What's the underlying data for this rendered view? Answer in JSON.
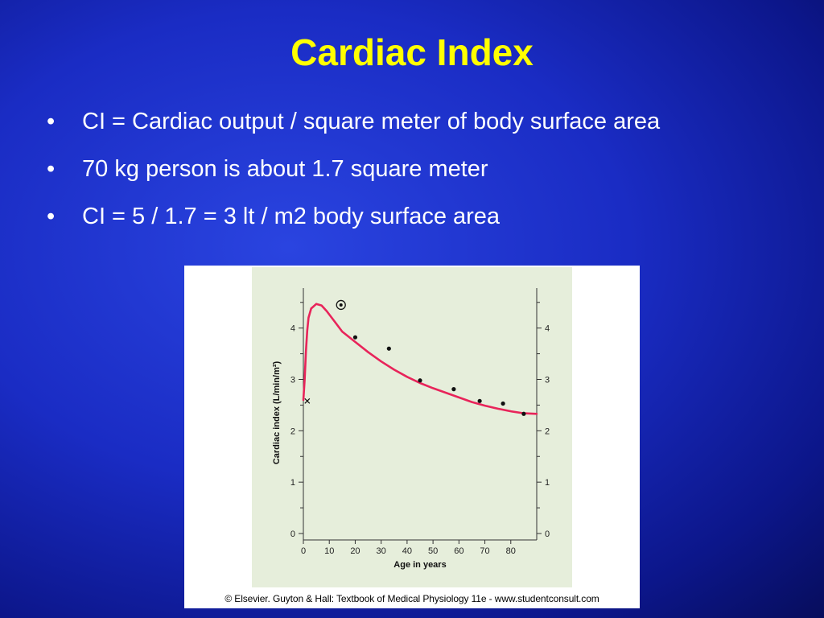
{
  "slide": {
    "title": "Cardiac Index",
    "bullet_glyph": "•",
    "bullets": [
      "CI = Cardiac output / square meter of body surface area",
      "70 kg person is about 1.7 square meter",
      "CI = 5 / 1.7 = 3 lt / m2 body surface area"
    ],
    "caption": "© Elsevier. Guyton & Hall: Textbook of Medical Physiology 11e - www.studentconsult.com"
  },
  "colors": {
    "title": "#ffff00",
    "bullet_text": "#ffffff",
    "plot_background": "#e6eedb",
    "curve": "#e8245a",
    "points": "#111111"
  },
  "chart_data": {
    "type": "line",
    "title": "",
    "xlabel": "Age in years",
    "ylabel": "Cardiac index (L/min/m²)",
    "xlim": [
      0,
      90
    ],
    "ylim": [
      0,
      4.7
    ],
    "x_ticks": [
      0,
      10,
      20,
      30,
      40,
      50,
      60,
      70,
      80
    ],
    "y_ticks": [
      0,
      1,
      2,
      3,
      4
    ],
    "right_axis_ticks": [
      0,
      1,
      2,
      3,
      4
    ],
    "grid": false,
    "curve": {
      "x": [
        0,
        0.5,
        1,
        1.5,
        2,
        3,
        5,
        7,
        9,
        12,
        15,
        20,
        25,
        30,
        35,
        40,
        45,
        50,
        55,
        60,
        65,
        70,
        75,
        80,
        85,
        90
      ],
      "y": [
        2.6,
        3.0,
        3.55,
        3.95,
        4.2,
        4.38,
        4.47,
        4.44,
        4.33,
        4.13,
        3.93,
        3.73,
        3.53,
        3.35,
        3.19,
        3.05,
        2.93,
        2.83,
        2.74,
        2.65,
        2.56,
        2.49,
        2.43,
        2.38,
        2.34,
        2.33
      ]
    },
    "points": {
      "x": [
        20,
        33,
        45,
        58,
        68,
        77,
        85
      ],
      "y": [
        3.82,
        3.6,
        2.98,
        2.81,
        2.58,
        2.53,
        2.33
      ]
    },
    "special_points": [
      {
        "marker": "circled-dot",
        "x": 14.5,
        "y": 4.45
      },
      {
        "marker": "x",
        "x": 1.5,
        "y": 2.58
      }
    ]
  }
}
